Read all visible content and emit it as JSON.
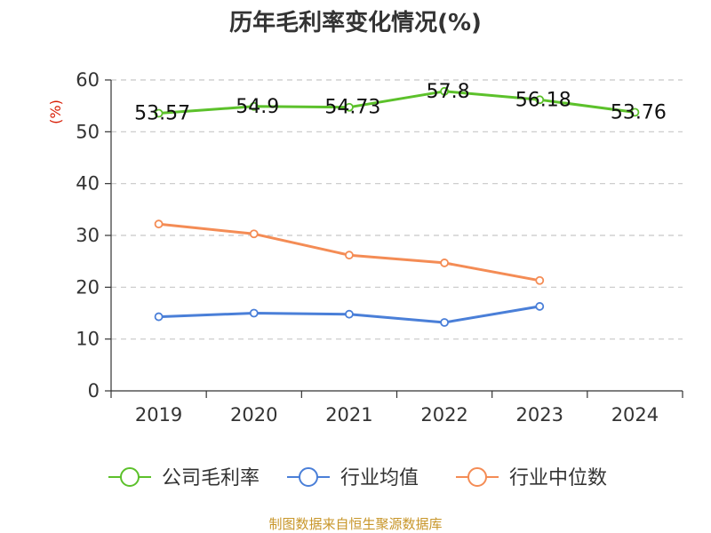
{
  "chart_data": {
    "type": "line",
    "title": "历年毛利率变化情况(%)",
    "ylabel": "(%)",
    "xlabel": "",
    "categories": [
      "2019",
      "2020",
      "2021",
      "2022",
      "2023",
      "2024"
    ],
    "ylim": [
      0,
      60
    ],
    "yticks": [
      0,
      10,
      20,
      30,
      40,
      50,
      60
    ],
    "grid": true,
    "legend_position": "bottom",
    "series": [
      {
        "name": "公司毛利率",
        "color": "#5cc12b",
        "values": [
          53.57,
          54.9,
          54.73,
          57.8,
          56.18,
          53.76
        ],
        "labels": [
          "53.57",
          "54.9",
          "54.73",
          "57.8",
          "56.18",
          "53.76"
        ]
      },
      {
        "name": "行业均值",
        "color": "#4a7fd8",
        "values": [
          14.3,
          15.0,
          14.8,
          13.2,
          16.3,
          null
        ]
      },
      {
        "name": "行业中位数",
        "color": "#f48c55",
        "values": [
          32.2,
          30.3,
          26.2,
          24.7,
          21.3,
          null
        ]
      }
    ]
  },
  "footer": "制图数据来自恒生聚源数据库"
}
